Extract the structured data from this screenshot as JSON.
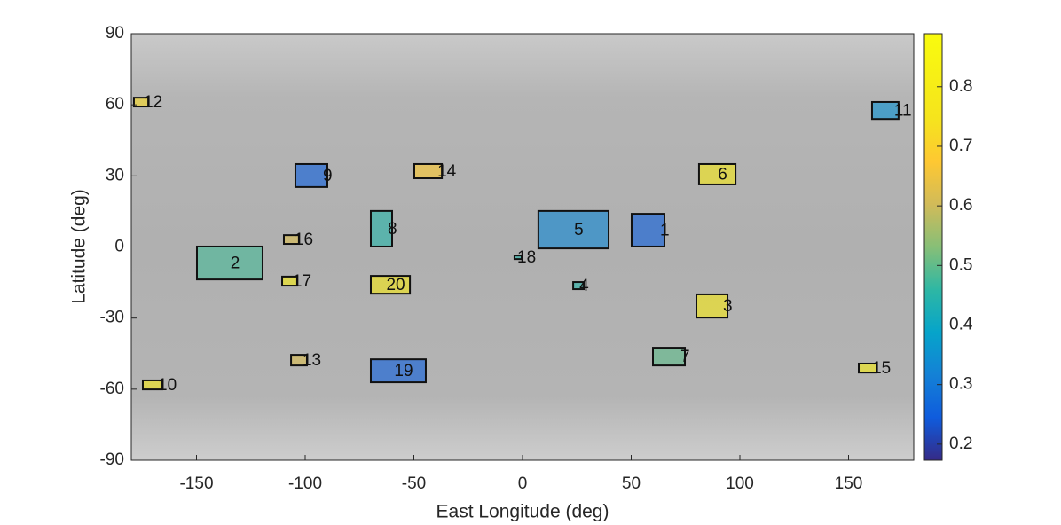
{
  "chart_data": {
    "type": "region",
    "xlabel": "East Longitude (deg)",
    "ylabel": "Latitude (deg)",
    "xlim": [
      -180,
      180
    ],
    "ylim": [
      -90,
      90
    ],
    "xticks": [
      -150,
      -100,
      -50,
      0,
      50,
      100,
      150
    ],
    "yticks": [
      -90,
      -60,
      -30,
      0,
      30,
      60,
      90
    ],
    "clim": [
      0.173,
      0.889
    ],
    "cticks": [
      0.2,
      0.3,
      0.4,
      0.5,
      0.6,
      0.7,
      0.8
    ],
    "regions": [
      {
        "name": "1",
        "lon": [
          50.2,
          65.3
        ],
        "lat": [
          0.2,
          14
        ],
        "value": 0.25
      },
      {
        "name": "2",
        "lon": [
          -149.8,
          -119.6
        ],
        "lat": [
          -13.7,
          0.2
        ],
        "value": 0.48
      },
      {
        "name": "3",
        "lon": [
          80,
          94.3
        ],
        "lat": [
          -29.8,
          -20
        ],
        "value": 0.78
      },
      {
        "name": "4",
        "lon": [
          23.3,
          28.2
        ],
        "lat": [
          -17.8,
          -14.8
        ],
        "value": 0.45
      },
      {
        "name": "5",
        "lon": [
          7.3,
          39.6
        ],
        "lat": [
          -0.6,
          15.2
        ],
        "value": 0.33
      },
      {
        "name": "6",
        "lon": [
          81.2,
          98
        ],
        "lat": [
          26.4,
          35
        ],
        "value": 0.78
      },
      {
        "name": "7",
        "lon": [
          60,
          74.7
        ],
        "lat": [
          -50,
          -42.5
        ],
        "value": 0.5
      },
      {
        "name": "8",
        "lon": [
          -69.8,
          -60
        ],
        "lat": [
          0.2,
          15.2
        ],
        "value": 0.45
      },
      {
        "name": "9",
        "lon": [
          -104.5,
          -89.8
        ],
        "lat": [
          25.3,
          35
        ],
        "value": 0.25
      },
      {
        "name": "10",
        "lon": [
          -174.7,
          -165.7
        ],
        "lat": [
          -60.1,
          -56.3
        ],
        "value": 0.78
      },
      {
        "name": "11",
        "lon": [
          160.8,
          173
        ],
        "lat": [
          54,
          61.2
        ],
        "value": 0.35
      },
      {
        "name": "12",
        "lon": [
          -178.8,
          -172.2
        ],
        "lat": [
          59.3,
          63
        ],
        "value": 0.72
      },
      {
        "name": "13",
        "lon": [
          -106.5,
          -99.2
        ],
        "lat": [
          -50,
          -45.5
        ],
        "value": 0.62
      },
      {
        "name": "14",
        "lon": [
          -49.8,
          -37.1
        ],
        "lat": [
          29,
          35
        ],
        "value": 0.68
      },
      {
        "name": "15",
        "lon": [
          154.7,
          162.9
        ],
        "lat": [
          -53,
          -49.2
        ],
        "value": 0.8
      },
      {
        "name": "16",
        "lon": [
          -109.8,
          -102.9
        ],
        "lat": [
          1.3,
          5
        ],
        "value": 0.62
      },
      {
        "name": "17",
        "lon": [
          -110.6,
          -103.7
        ],
        "lat": [
          -16.3,
          -12.5
        ],
        "value": 0.8
      },
      {
        "name": "18",
        "lon": [
          -3.7,
          -0.4
        ],
        "lat": [
          -5.1,
          -3.6
        ],
        "value": 0.45
      },
      {
        "name": "19",
        "lon": [
          -69.8,
          -44.5
        ],
        "lat": [
          -57.1,
          -47.4
        ],
        "value": 0.25
      },
      {
        "name": "20",
        "lon": [
          -69.8,
          -51.8
        ],
        "lat": [
          -19.7,
          -12.2
        ],
        "value": 0.78
      }
    ]
  }
}
